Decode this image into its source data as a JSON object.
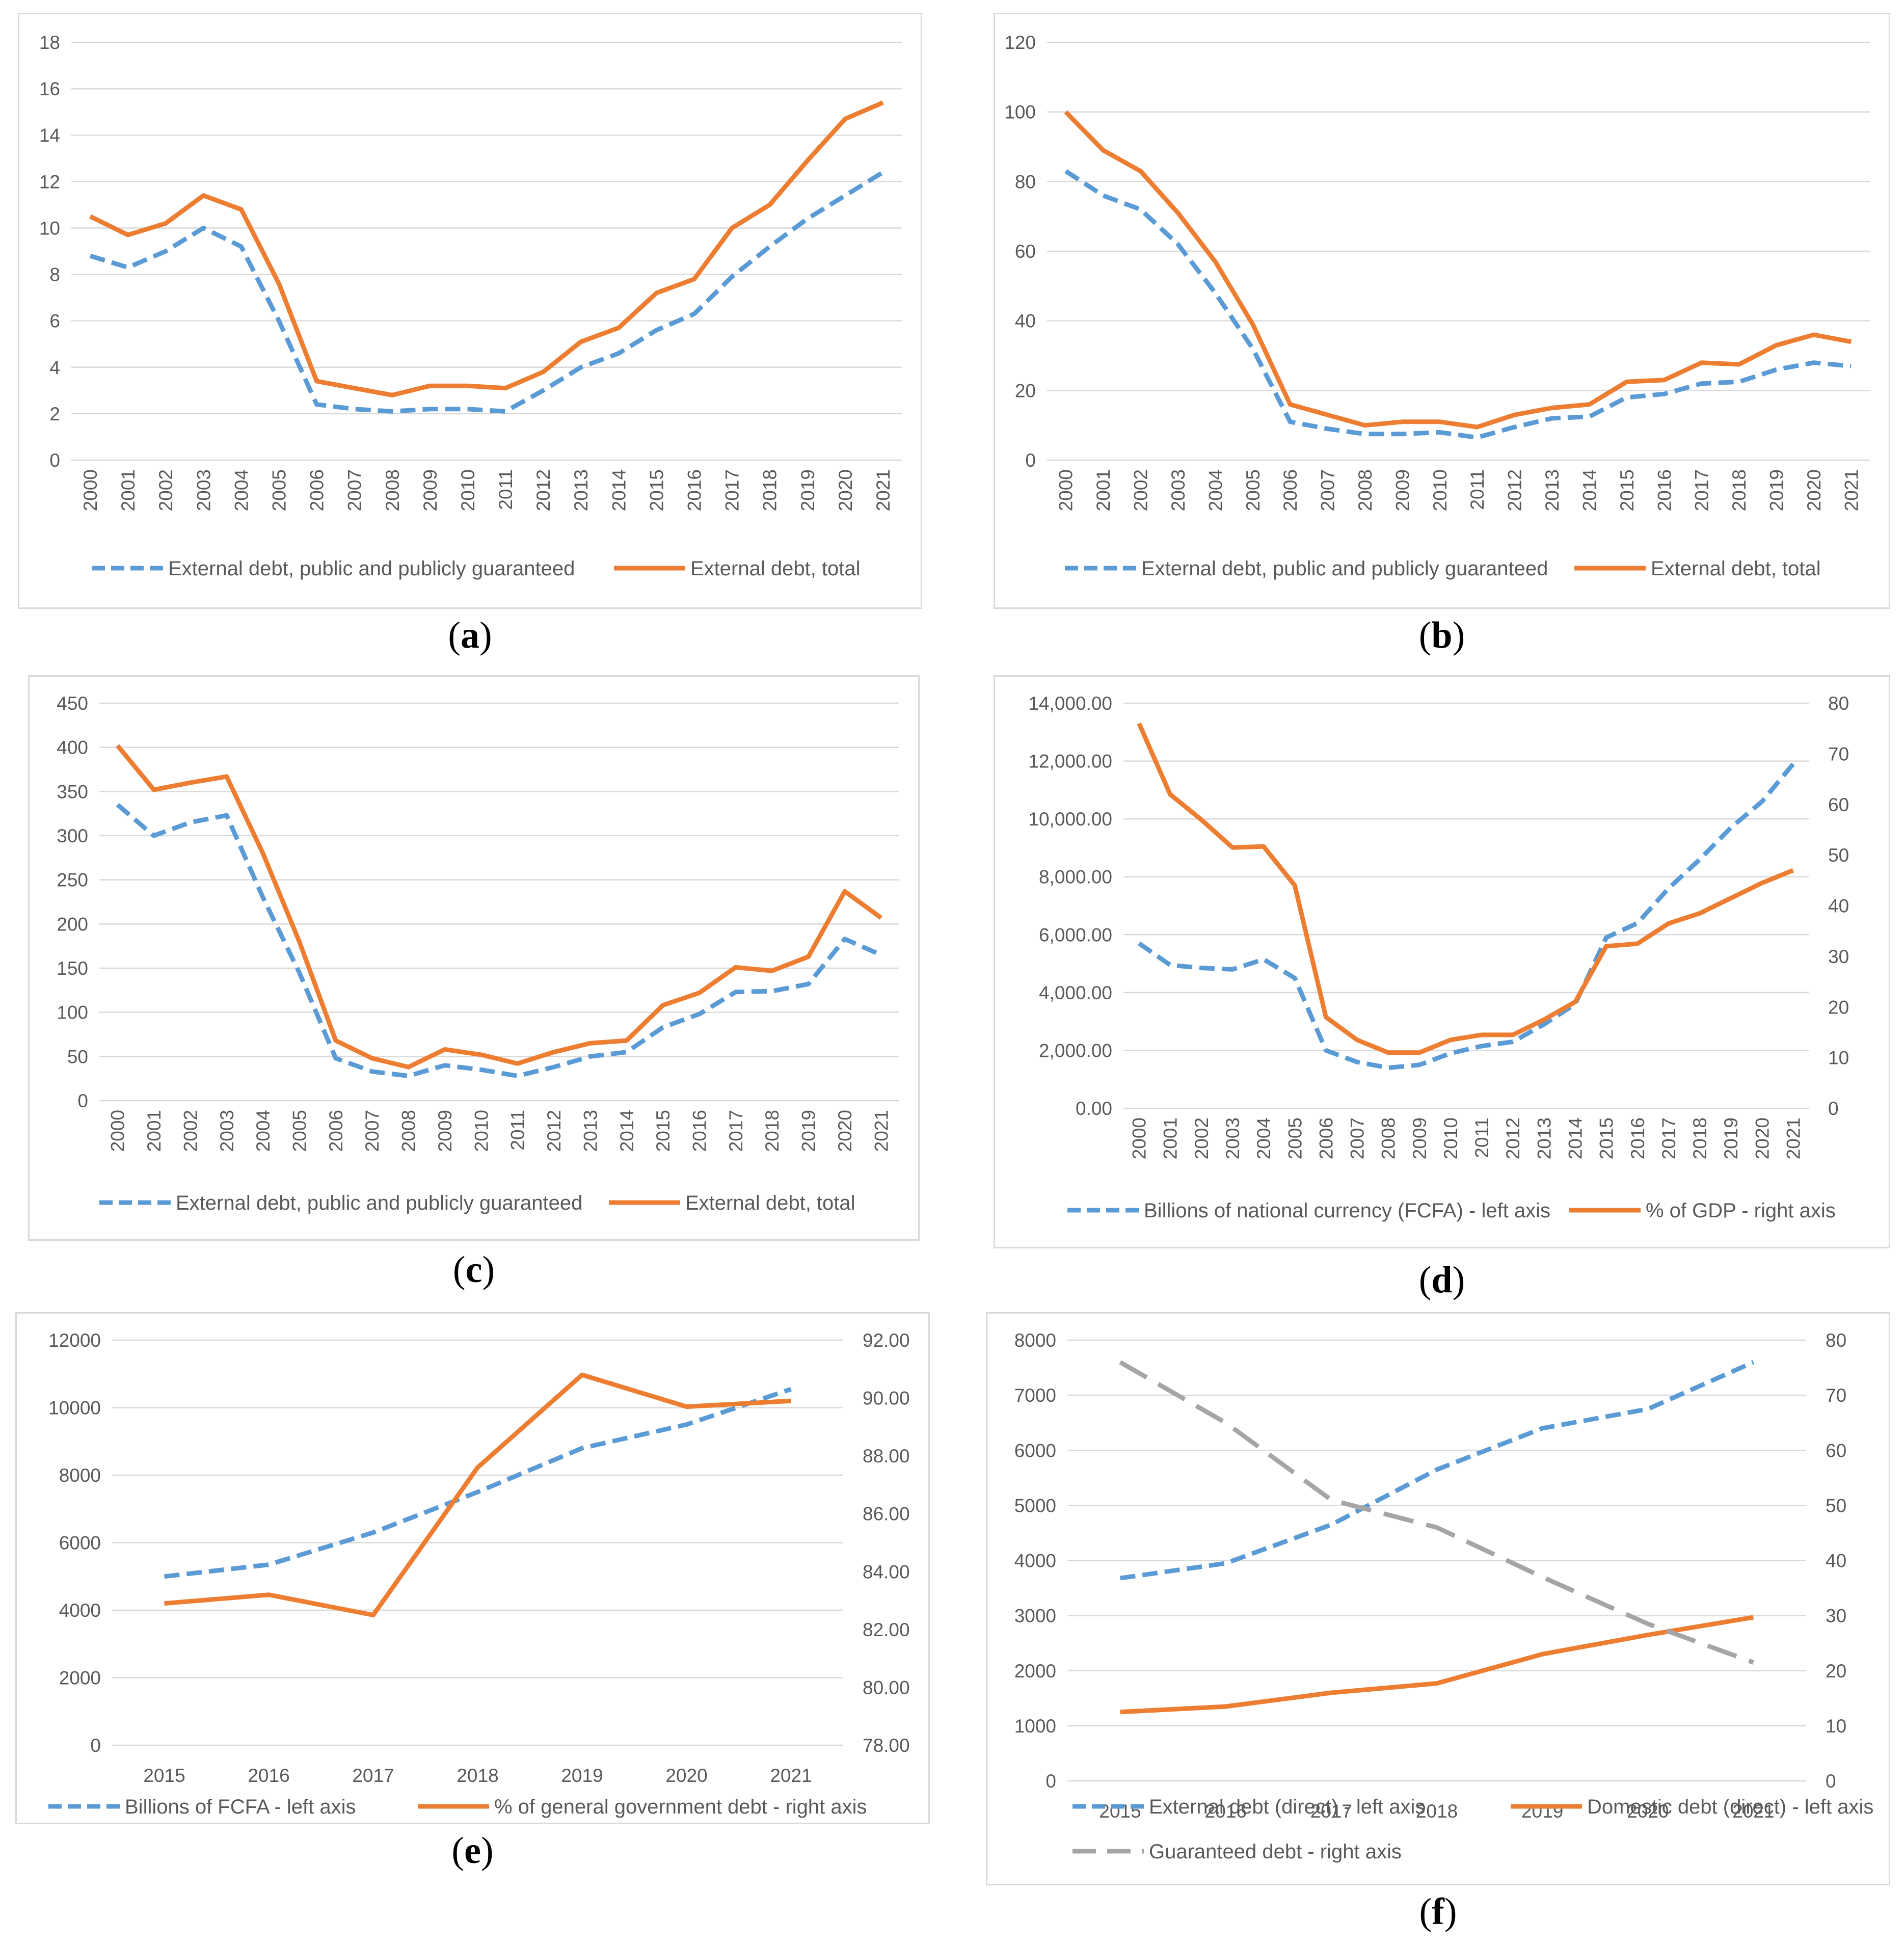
{
  "colors": {
    "blue": "#5b9bd5",
    "orange": "#ed7d31",
    "gray": "#a5a5a5"
  },
  "chart_data": [
    {
      "id": "a",
      "type": "line",
      "caption": "a",
      "x": [
        "2000",
        "2001",
        "2002",
        "2003",
        "2004",
        "2005",
        "2006",
        "2007",
        "2008",
        "2009",
        "2010",
        "2011",
        "2012",
        "2013",
        "2014",
        "2015",
        "2016",
        "2017",
        "2018",
        "2019",
        "2020",
        "2021"
      ],
      "x_rotated": true,
      "ylim": [
        0,
        18
      ],
      "yticks": [
        0,
        2,
        4,
        6,
        8,
        10,
        12,
        14,
        16,
        18
      ],
      "ytick_labels": [
        "0",
        "2",
        "4",
        "6",
        "8",
        "10",
        "12",
        "14",
        "16",
        "18"
      ],
      "series": [
        {
          "name": "External debt, public and publicly guaranteed",
          "style": "dashed",
          "color": "#5b9bd5",
          "axis": "left",
          "values": [
            8.8,
            8.3,
            9.0,
            10.0,
            9.2,
            6.0,
            2.4,
            2.2,
            2.1,
            2.2,
            2.2,
            2.1,
            3.0,
            4.0,
            4.6,
            5.6,
            6.3,
            7.9,
            9.2,
            10.4,
            11.4,
            12.4
          ]
        },
        {
          "name": "External debt, total",
          "style": "solid",
          "color": "#ed7d31",
          "axis": "left",
          "values": [
            10.5,
            9.7,
            10.2,
            11.4,
            10.8,
            7.6,
            3.4,
            3.1,
            2.8,
            3.2,
            3.2,
            3.1,
            3.8,
            5.1,
            5.7,
            7.2,
            7.8,
            10.0,
            11.0,
            12.9,
            14.7,
            15.4
          ]
        }
      ]
    },
    {
      "id": "b",
      "type": "line",
      "caption": "b",
      "x": [
        "2000",
        "2001",
        "2002",
        "2003",
        "2004",
        "2005",
        "2006",
        "2007",
        "2008",
        "2009",
        "2010",
        "2011",
        "2012",
        "2013",
        "2014",
        "2015",
        "2016",
        "2017",
        "2018",
        "2019",
        "2020",
        "2021"
      ],
      "x_rotated": true,
      "ylim": [
        0,
        120
      ],
      "yticks": [
        0,
        20,
        40,
        60,
        80,
        100,
        120
      ],
      "ytick_labels": [
        "0",
        "20",
        "40",
        "60",
        "80",
        "100",
        "120"
      ],
      "series": [
        {
          "name": "External debt, public and publicly guaranteed",
          "style": "dashed",
          "color": "#5b9bd5",
          "axis": "left",
          "values": [
            83,
            76,
            72,
            62,
            48,
            32,
            11,
            9,
            7.5,
            7.5,
            8,
            6.5,
            9.5,
            12,
            12.5,
            18,
            19,
            22,
            22.5,
            26,
            28,
            27
          ]
        },
        {
          "name": "External debt, total",
          "style": "solid",
          "color": "#ed7d31",
          "axis": "left",
          "values": [
            100,
            89,
            83,
            71,
            57,
            39,
            16,
            13,
            10,
            11,
            11,
            9.5,
            13,
            15,
            16,
            22.5,
            23,
            28,
            27.5,
            33,
            36,
            34
          ]
        }
      ]
    },
    {
      "id": "c",
      "type": "line",
      "caption": "c",
      "x": [
        "2000",
        "2001",
        "2002",
        "2003",
        "2004",
        "2005",
        "2006",
        "2007",
        "2008",
        "2009",
        "2010",
        "2011",
        "2012",
        "2013",
        "2014",
        "2015",
        "2016",
        "2017",
        "2018",
        "2019",
        "2020",
        "2021"
      ],
      "x_rotated": true,
      "ylim": [
        0,
        450
      ],
      "yticks": [
        0,
        50,
        100,
        150,
        200,
        250,
        300,
        350,
        400,
        450
      ],
      "ytick_labels": [
        "0",
        "50",
        "100",
        "150",
        "200",
        "250",
        "300",
        "350",
        "400",
        "450"
      ],
      "series": [
        {
          "name": "External debt, public and publicly guaranteed",
          "style": "dashed",
          "color": "#5b9bd5",
          "axis": "left",
          "values": [
            335,
            300,
            315,
            323,
            230,
            145,
            48,
            33,
            28,
            40,
            35,
            28,
            38,
            50,
            55,
            83,
            98,
            123,
            124,
            132,
            183,
            165
          ]
        },
        {
          "name": "External debt, total",
          "style": "solid",
          "color": "#ed7d31",
          "axis": "left",
          "values": [
            402,
            352,
            360,
            367,
            280,
            180,
            68,
            48,
            38,
            58,
            52,
            42,
            55,
            65,
            68,
            108,
            122,
            151,
            147,
            163,
            237,
            207
          ]
        }
      ]
    },
    {
      "id": "d",
      "type": "line",
      "caption": "d",
      "x": [
        "2000",
        "2001",
        "2002",
        "2003",
        "2004",
        "2005",
        "2006",
        "2007",
        "2008",
        "2009",
        "2010",
        "2011",
        "2012",
        "2013",
        "2014",
        "2015",
        "2016",
        "2017",
        "2018",
        "2019",
        "2020",
        "2021"
      ],
      "x_rotated": true,
      "ylim": [
        0,
        14000
      ],
      "yticks": [
        0,
        2000,
        4000,
        6000,
        8000,
        10000,
        12000,
        14000
      ],
      "ytick_labels": [
        "0.00",
        "2,000.00",
        "4,000.00",
        "6,000.00",
        "8,000.00",
        "10,000.00",
        "12,000.00",
        "14,000.00"
      ],
      "y2lim": [
        0,
        80
      ],
      "y2ticks": [
        0,
        10,
        20,
        30,
        40,
        50,
        60,
        70,
        80
      ],
      "y2tick_labels": [
        "0",
        "10",
        "20",
        "30",
        "40",
        "50",
        "60",
        "70",
        "80"
      ],
      "series": [
        {
          "name": "Billions of national currency (FCFA) - left axis",
          "style": "dashed",
          "color": "#5b9bd5",
          "axis": "left",
          "values": [
            5700,
            4950,
            4850,
            4800,
            5150,
            4500,
            2000,
            1600,
            1400,
            1500,
            1900,
            2150,
            2300,
            2900,
            3600,
            5900,
            6400,
            7600,
            8600,
            9700,
            10600,
            11900
          ]
        },
        {
          "name": "% of GDP - right axis",
          "style": "solid",
          "color": "#ed7d31",
          "axis": "right",
          "values": [
            76,
            62,
            57,
            51.5,
            51.7,
            44,
            18,
            13.5,
            11,
            11,
            13.5,
            14.5,
            14.5,
            17.5,
            21,
            32,
            32.5,
            36.5,
            38.5,
            41.5,
            44.5,
            47
          ]
        }
      ]
    },
    {
      "id": "e",
      "type": "line",
      "caption": "e",
      "x": [
        "2015",
        "2016",
        "2017",
        "2018",
        "2019",
        "2020",
        "2021"
      ],
      "x_rotated": false,
      "ylim": [
        0,
        12000
      ],
      "yticks": [
        0,
        2000,
        4000,
        6000,
        8000,
        10000,
        12000
      ],
      "ytick_labels": [
        "0",
        "2000",
        "4000",
        "6000",
        "8000",
        "10000",
        "12000"
      ],
      "y2lim": [
        78,
        92
      ],
      "y2ticks": [
        78,
        80,
        82,
        84,
        86,
        88,
        90,
        92
      ],
      "y2tick_labels": [
        "78.00",
        "80.00",
        "82.00",
        "84.00",
        "86.00",
        "88.00",
        "90.00",
        "92.00"
      ],
      "series": [
        {
          "name": "Billions of FCFA - left axis",
          "style": "dashed",
          "color": "#5b9bd5",
          "axis": "left",
          "values": [
            5000,
            5350,
            6300,
            7500,
            8800,
            9500,
            10550
          ]
        },
        {
          "name": "% of general government debt - right axis",
          "style": "solid",
          "color": "#ed7d31",
          "axis": "right",
          "values": [
            82.9,
            83.2,
            82.5,
            87.6,
            90.8,
            89.7,
            89.9
          ]
        }
      ]
    },
    {
      "id": "f",
      "type": "line",
      "caption": "f",
      "x": [
        "2015",
        "2016",
        "2017",
        "2018",
        "2019",
        "2020",
        "2021"
      ],
      "x_rotated": false,
      "ylim": [
        0,
        8000
      ],
      "yticks": [
        0,
        1000,
        2000,
        3000,
        4000,
        5000,
        6000,
        7000,
        8000
      ],
      "ytick_labels": [
        "0",
        "1000",
        "2000",
        "3000",
        "4000",
        "5000",
        "6000",
        "7000",
        "8000"
      ],
      "y2lim": [
        0,
        80
      ],
      "y2ticks": [
        0,
        10,
        20,
        30,
        40,
        50,
        60,
        70,
        80
      ],
      "y2tick_labels": [
        "0",
        "10",
        "20",
        "30",
        "40",
        "50",
        "60",
        "70",
        "80"
      ],
      "series": [
        {
          "name": "External debt (direct) - left axis",
          "style": "dashed",
          "color": "#5b9bd5",
          "axis": "left",
          "values": [
            3680,
            3950,
            4650,
            5650,
            6400,
            6750,
            7600
          ]
        },
        {
          "name": "Domestic debt (direct) - left axis",
          "style": "solid",
          "color": "#ed7d31",
          "axis": "left",
          "values": [
            1250,
            1350,
            1600,
            1770,
            2300,
            2650,
            2970
          ]
        },
        {
          "name": "Guaranteed debt - right axis",
          "style": "longdash",
          "color": "#a5a5a5",
          "axis": "right",
          "values": [
            76,
            65,
            51,
            46,
            37,
            28.5,
            21.5
          ]
        }
      ]
    }
  ]
}
